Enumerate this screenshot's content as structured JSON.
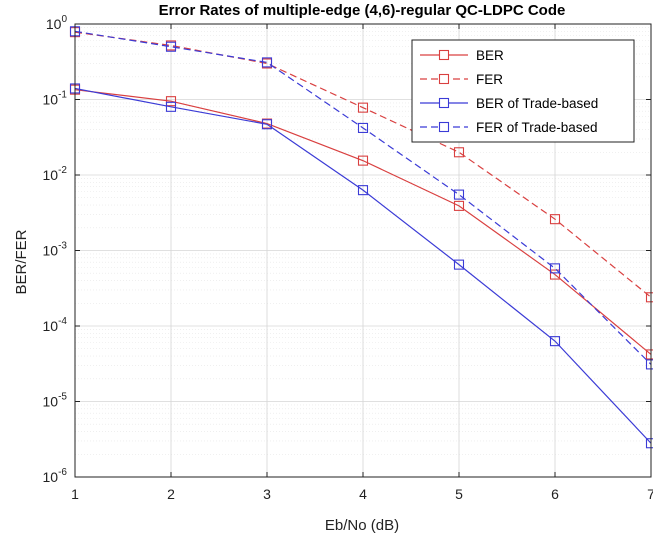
{
  "chart_data": {
    "type": "line",
    "title": "Error Rates of multiple-edge (4,6)-regular QC-LDPC Code",
    "xlabel": "Eb/No (dB)",
    "ylabel": "BER/FER",
    "x": [
      1,
      2,
      3,
      4,
      5,
      6,
      7
    ],
    "xlim": [
      1,
      7
    ],
    "ylim": [
      1e-06,
      1
    ],
    "yscale": "log",
    "xticks": [
      "1",
      "2",
      "3",
      "4",
      "5",
      "6",
      "7"
    ],
    "yticks": [
      {
        "base": "10",
        "exp": "-6",
        "value": 1e-06
      },
      {
        "base": "10",
        "exp": "-5",
        "value": 1e-05
      },
      {
        "base": "10",
        "exp": "-4",
        "value": 0.0001
      },
      {
        "base": "10",
        "exp": "-3",
        "value": 0.001
      },
      {
        "base": "10",
        "exp": "-2",
        "value": 0.01
      },
      {
        "base": "10",
        "exp": "-1",
        "value": 0.1
      },
      {
        "base": "10",
        "exp": "0",
        "value": 1
      }
    ],
    "grid": true,
    "legend_position": "top-right",
    "series": [
      {
        "name": "BER",
        "color": "#d94040",
        "dash": false,
        "values": [
          0.135,
          0.095,
          0.048,
          0.0155,
          0.0039,
          0.00048,
          4.2e-05
        ]
      },
      {
        "name": "FER",
        "color": "#d94040",
        "dash": true,
        "values": [
          0.78,
          0.52,
          0.3,
          0.078,
          0.02,
          0.0026,
          0.00024
        ]
      },
      {
        "name": "BER of Trade-based",
        "color": "#3b3bd6",
        "dash": false,
        "values": [
          0.14,
          0.08,
          0.047,
          0.0063,
          0.00065,
          6.3e-05,
          2.8e-06
        ]
      },
      {
        "name": "FER of Trade-based",
        "color": "#3b3bd6",
        "dash": true,
        "values": [
          0.8,
          0.5,
          0.31,
          0.042,
          0.0055,
          0.00058,
          3.1e-05
        ]
      }
    ]
  }
}
